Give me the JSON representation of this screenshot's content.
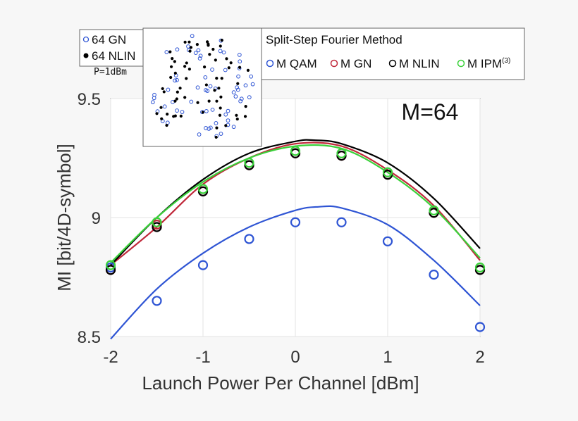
{
  "chart_data": {
    "type": "line",
    "annotation": "M=64",
    "xlabel": "Launch Power Per Channel [dBm]",
    "ylabel": "MI [bit/4D-symbol]",
    "xlim": [
      -2,
      2
    ],
    "ylim": [
      8.5,
      9.5
    ],
    "xticks": [
      "-2",
      "-1",
      "0",
      "1",
      "2"
    ],
    "yticks": [
      "8.5",
      "9",
      "9.5"
    ],
    "grid": true,
    "legend_title": "Split-Step Fourier Method",
    "legend": [
      {
        "label": "M QAM",
        "color": "#2f55d4"
      },
      {
        "label": "M GN",
        "color": "#c0283a"
      },
      {
        "label": "M NLIN",
        "color": "#000000"
      },
      {
        "label": "M IPM",
        "sup": "(3)",
        "color": "#3ad13a"
      }
    ],
    "lines": [
      {
        "name": "M QAM",
        "color": "#2f55d4",
        "x": [
          -2,
          -1.5,
          -1,
          -0.5,
          0,
          0.25,
          0.5,
          1,
          1.5,
          2
        ],
        "y": [
          8.49,
          8.7,
          8.85,
          8.96,
          9.03,
          9.045,
          9.04,
          8.97,
          8.82,
          8.63
        ]
      },
      {
        "name": "M GN",
        "color": "#c0283a",
        "x": [
          -2,
          -1.5,
          -1,
          -0.5,
          0,
          0.5,
          1,
          1.5,
          2
        ],
        "y": [
          8.8,
          8.96,
          9.14,
          9.25,
          9.31,
          9.3,
          9.2,
          9.05,
          8.82
        ]
      },
      {
        "name": "M NLIN",
        "color": "#000000",
        "x": [
          -2,
          -1.5,
          -1,
          -0.5,
          0,
          0.2,
          0.5,
          1,
          1.5,
          2
        ],
        "y": [
          8.8,
          9.0,
          9.16,
          9.27,
          9.32,
          9.325,
          9.31,
          9.23,
          9.08,
          8.87
        ]
      },
      {
        "name": "M IPM",
        "color": "#3ad13a",
        "x": [
          -2,
          -1.5,
          -1,
          -0.5,
          0,
          0.5,
          1,
          1.5,
          2
        ],
        "y": [
          8.81,
          9.0,
          9.15,
          9.25,
          9.3,
          9.29,
          9.19,
          9.04,
          8.83
        ]
      }
    ],
    "points": [
      {
        "name": "QAM",
        "color": "#2f55d4",
        "x": [
          -2,
          -1.5,
          -1,
          -0.5,
          0,
          0.5,
          1,
          1.5,
          2
        ],
        "y": [
          8.79,
          8.65,
          8.8,
          8.91,
          8.98,
          8.98,
          8.9,
          8.76,
          8.54
        ]
      },
      {
        "name": "GN",
        "color": "#c0283a",
        "x": [
          -2,
          -1.5,
          -1,
          -0.5,
          0,
          0.5,
          1,
          1.5,
          2
        ],
        "y": [
          8.78,
          8.97,
          9.11,
          9.22,
          9.27,
          9.26,
          9.18,
          9.02,
          8.78
        ]
      },
      {
        "name": "NLIN",
        "color": "#000000",
        "x": [
          -2,
          -1.5,
          -1,
          -0.5,
          0,
          0.5,
          1,
          1.5,
          2
        ],
        "y": [
          8.78,
          8.96,
          9.11,
          9.22,
          9.27,
          9.26,
          9.18,
          9.02,
          8.78
        ]
      },
      {
        "name": "IPM",
        "color": "#3ad13a",
        "x": [
          -2,
          -1.5,
          -1,
          -0.5,
          0,
          0.5,
          1,
          1.5,
          2
        ],
        "y": [
          8.8,
          8.98,
          9.12,
          9.23,
          9.28,
          9.27,
          9.19,
          9.03,
          8.79
        ]
      }
    ]
  },
  "inset": {
    "legend": [
      {
        "label": "64 GN",
        "marker": "open-circle",
        "color": "#2f55d4"
      },
      {
        "label": "64 NLIN",
        "marker": "filled-circle",
        "color": "#000000"
      }
    ],
    "power_label": "P=1dBm",
    "seed": 64
  }
}
